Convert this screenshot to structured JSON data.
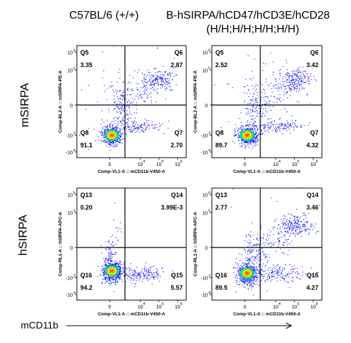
{
  "column_titles": [
    "C57BL/6 (+/+)",
    "B-hSIRPA/hCD47/hCD3E/hCD28",
    "(H/H;H/H;H/H;H/H)"
  ],
  "row_titles": [
    "mSIRPA",
    "hSIRPA"
  ],
  "bottom_axis_label": "mCD11b",
  "colors": {
    "dots": "#1a1aff",
    "gate": "#000000",
    "core_red": "#ff2000",
    "core_yellow": "#ffe600",
    "core_green": "#22cc22",
    "core_cyan": "#00ccee"
  },
  "chart_data": [
    {
      "type": "scatter",
      "subtype": "flow-cytometry-dot-plot",
      "row": "mSIRPA",
      "column": "C57BL/6 (+/+)",
      "ylabel": "Comp-BL2-A :: mSIRPA-PE-A",
      "xlabel": "Comp-VL1-A :: mCD11b-V450-A",
      "x_ticks": [
        "0",
        "10",
        "10",
        "10"
      ],
      "x_tick_exp": [
        "",
        "4",
        "5",
        "6"
      ],
      "y_ticks": [
        "10",
        "10",
        "0",
        "-10",
        "-10"
      ],
      "y_tick_exp": [
        "6",
        "5",
        "",
        "3",
        "4"
      ],
      "quadrants": [
        {
          "name": "Q5",
          "position": "upper-left",
          "percent": "3.35"
        },
        {
          "name": "Q6",
          "position": "upper-right",
          "percent": "2.87"
        },
        {
          "name": "Q8",
          "position": "lower-left",
          "percent": "91.1"
        },
        {
          "name": "Q7",
          "position": "lower-right",
          "percent": "2.70"
        }
      ]
    },
    {
      "type": "scatter",
      "subtype": "flow-cytometry-dot-plot",
      "row": "mSIRPA",
      "column": "B-hSIRPA/hCD47/hCD3E/hCD28 (H/H;H/H;H/H;H/H)",
      "ylabel": "Comp-BL2-A :: mSIRPA-PE-A",
      "xlabel": "Comp-VL1-A :: mCD11b-V450-A",
      "x_ticks": [
        "0",
        "10",
        "10",
        "10"
      ],
      "x_tick_exp": [
        "",
        "4",
        "5",
        "6"
      ],
      "y_ticks": [
        "10",
        "10",
        "0",
        "-10",
        "-10"
      ],
      "y_tick_exp": [
        "6",
        "5",
        "",
        "3",
        "4"
      ],
      "quadrants": [
        {
          "name": "Q5",
          "position": "upper-left",
          "percent": "2.52"
        },
        {
          "name": "Q6",
          "position": "upper-right",
          "percent": "3.42"
        },
        {
          "name": "Q8",
          "position": "lower-left",
          "percent": "89.7"
        },
        {
          "name": "Q7",
          "position": "lower-right",
          "percent": "4.32"
        }
      ]
    },
    {
      "type": "scatter",
      "subtype": "flow-cytometry-dot-plot",
      "row": "hSIRPA",
      "column": "C57BL/6 (+/+)",
      "ylabel": "Comp-RL1-A :: hSIRPA-APC-A",
      "xlabel": "Comp-VL1-A :: mCD11b-V450-A",
      "x_ticks": [
        "0",
        "10",
        "10",
        "10"
      ],
      "x_tick_exp": [
        "",
        "4",
        "5",
        "6"
      ],
      "y_ticks": [
        "10",
        "10",
        "0",
        "-10",
        "-10"
      ],
      "y_tick_exp": [
        "6",
        "5",
        "",
        "3",
        "4"
      ],
      "quadrants": [
        {
          "name": "Q13",
          "position": "upper-left",
          "percent": "0.20"
        },
        {
          "name": "Q14",
          "position": "upper-right",
          "percent": "3.99E-3"
        },
        {
          "name": "Q16",
          "position": "lower-left",
          "percent": "94.2"
        },
        {
          "name": "Q15",
          "position": "lower-right",
          "percent": "5.57"
        }
      ]
    },
    {
      "type": "scatter",
      "subtype": "flow-cytometry-dot-plot",
      "row": "hSIRPA",
      "column": "B-hSIRPA/hCD47/hCD3E/hCD28 (H/H;H/H;H/H;H/H)",
      "ylabel": "Comp-RL1-A :: hSIRPA-APC-A",
      "xlabel": "Comp-VL1-A :: mCD11b-V450-A",
      "x_ticks": [
        "0",
        "10",
        "10",
        "10"
      ],
      "x_tick_exp": [
        "",
        "4",
        "5",
        "6"
      ],
      "y_ticks": [
        "10",
        "10",
        "0",
        "-10",
        "-10"
      ],
      "y_tick_exp": [
        "6",
        "5",
        "",
        "3",
        "4"
      ],
      "quadrants": [
        {
          "name": "Q13",
          "position": "upper-left",
          "percent": "2.77"
        },
        {
          "name": "Q14",
          "position": "upper-right",
          "percent": "3.46"
        },
        {
          "name": "Q16",
          "position": "lower-left",
          "percent": "89.5"
        },
        {
          "name": "Q15",
          "position": "lower-right",
          "percent": "4.27"
        }
      ]
    }
  ]
}
